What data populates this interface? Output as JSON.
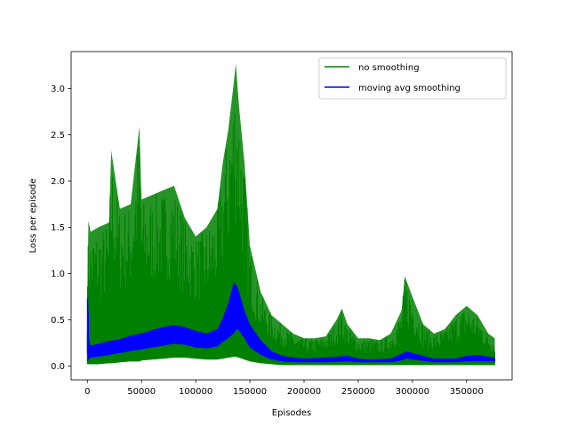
{
  "chart_data": {
    "type": "line",
    "title": "",
    "xlabel": "Episodes",
    "ylabel": "Loss per episode",
    "xlim": [
      -15000,
      392000
    ],
    "ylim": [
      -0.15,
      3.4
    ],
    "xticks": [
      0,
      50000,
      100000,
      150000,
      200000,
      250000,
      300000,
      350000
    ],
    "xtick_labels": [
      "0",
      "50000",
      "100000",
      "150000",
      "200000",
      "250000",
      "300000",
      "350000"
    ],
    "yticks": [
      0.0,
      0.5,
      1.0,
      1.5,
      2.0,
      2.5,
      3.0
    ],
    "ytick_labels": [
      "0.0",
      "0.5",
      "1.0",
      "1.5",
      "2.0",
      "2.5",
      "3.0"
    ],
    "grid": false,
    "legend": {
      "placement": "top-right"
    },
    "series": [
      {
        "name": "no smoothing",
        "color": "#008000",
        "style": "band",
        "x": [
          0,
          1000,
          3000,
          10000,
          20000,
          22000,
          30000,
          40000,
          48000,
          50000,
          60000,
          70000,
          80000,
          90000,
          100000,
          110000,
          120000,
          125000,
          130000,
          135000,
          137000,
          140000,
          145000,
          150000,
          160000,
          170000,
          180000,
          190000,
          200000,
          210000,
          220000,
          230000,
          235000,
          240000,
          250000,
          260000,
          270000,
          280000,
          290000,
          293000,
          300000,
          310000,
          320000,
          330000,
          340000,
          350000,
          360000,
          370000,
          376000
        ],
        "upper": [
          0.8,
          1.57,
          1.45,
          1.5,
          1.55,
          2.33,
          1.7,
          1.75,
          2.59,
          1.8,
          1.85,
          1.9,
          1.95,
          1.6,
          1.4,
          1.5,
          1.7,
          2.2,
          2.55,
          3.05,
          3.27,
          2.8,
          2.2,
          1.3,
          0.8,
          0.55,
          0.45,
          0.35,
          0.3,
          0.3,
          0.32,
          0.5,
          0.62,
          0.45,
          0.3,
          0.3,
          0.28,
          0.35,
          0.6,
          0.97,
          0.75,
          0.45,
          0.35,
          0.4,
          0.55,
          0.65,
          0.55,
          0.35,
          0.3
        ],
        "lower": [
          0.02,
          0.02,
          0.02,
          0.02,
          0.03,
          0.03,
          0.04,
          0.05,
          0.05,
          0.06,
          0.07,
          0.08,
          0.09,
          0.09,
          0.08,
          0.07,
          0.07,
          0.08,
          0.09,
          0.1,
          0.1,
          0.09,
          0.07,
          0.05,
          0.03,
          0.02,
          0.01,
          0.01,
          0.01,
          0.01,
          0.01,
          0.01,
          0.01,
          0.01,
          0.01,
          0.01,
          0.01,
          0.01,
          0.01,
          0.01,
          0.01,
          0.01,
          0.01,
          0.01,
          0.01,
          0.01,
          0.01,
          0.01,
          0.01
        ]
      },
      {
        "name": "moving avg smoothing",
        "color": "#0000ff",
        "style": "band",
        "x": [
          0,
          500,
          1500,
          3000,
          10000,
          20000,
          30000,
          40000,
          50000,
          60000,
          70000,
          80000,
          90000,
          100000,
          110000,
          120000,
          125000,
          130000,
          135000,
          138000,
          140000,
          145000,
          150000,
          160000,
          170000,
          180000,
          190000,
          200000,
          220000,
          240000,
          250000,
          260000,
          280000,
          290000,
          295000,
          300000,
          320000,
          340000,
          350000,
          360000,
          370000,
          376000
        ],
        "upper": [
          0.86,
          0.86,
          0.3,
          0.22,
          0.24,
          0.27,
          0.29,
          0.33,
          0.35,
          0.39,
          0.42,
          0.44,
          0.42,
          0.38,
          0.35,
          0.4,
          0.52,
          0.68,
          0.9,
          0.87,
          0.8,
          0.6,
          0.45,
          0.28,
          0.16,
          0.11,
          0.09,
          0.08,
          0.09,
          0.11,
          0.08,
          0.07,
          0.08,
          0.13,
          0.16,
          0.14,
          0.08,
          0.08,
          0.11,
          0.12,
          0.1,
          0.09
        ],
        "lower": [
          0.05,
          0.05,
          0.08,
          0.09,
          0.1,
          0.12,
          0.14,
          0.16,
          0.18,
          0.2,
          0.22,
          0.24,
          0.23,
          0.2,
          0.19,
          0.21,
          0.26,
          0.3,
          0.35,
          0.4,
          0.38,
          0.3,
          0.2,
          0.12,
          0.07,
          0.05,
          0.04,
          0.04,
          0.04,
          0.05,
          0.04,
          0.04,
          0.04,
          0.06,
          0.08,
          0.07,
          0.04,
          0.04,
          0.05,
          0.05,
          0.05,
          0.05
        ]
      }
    ]
  }
}
